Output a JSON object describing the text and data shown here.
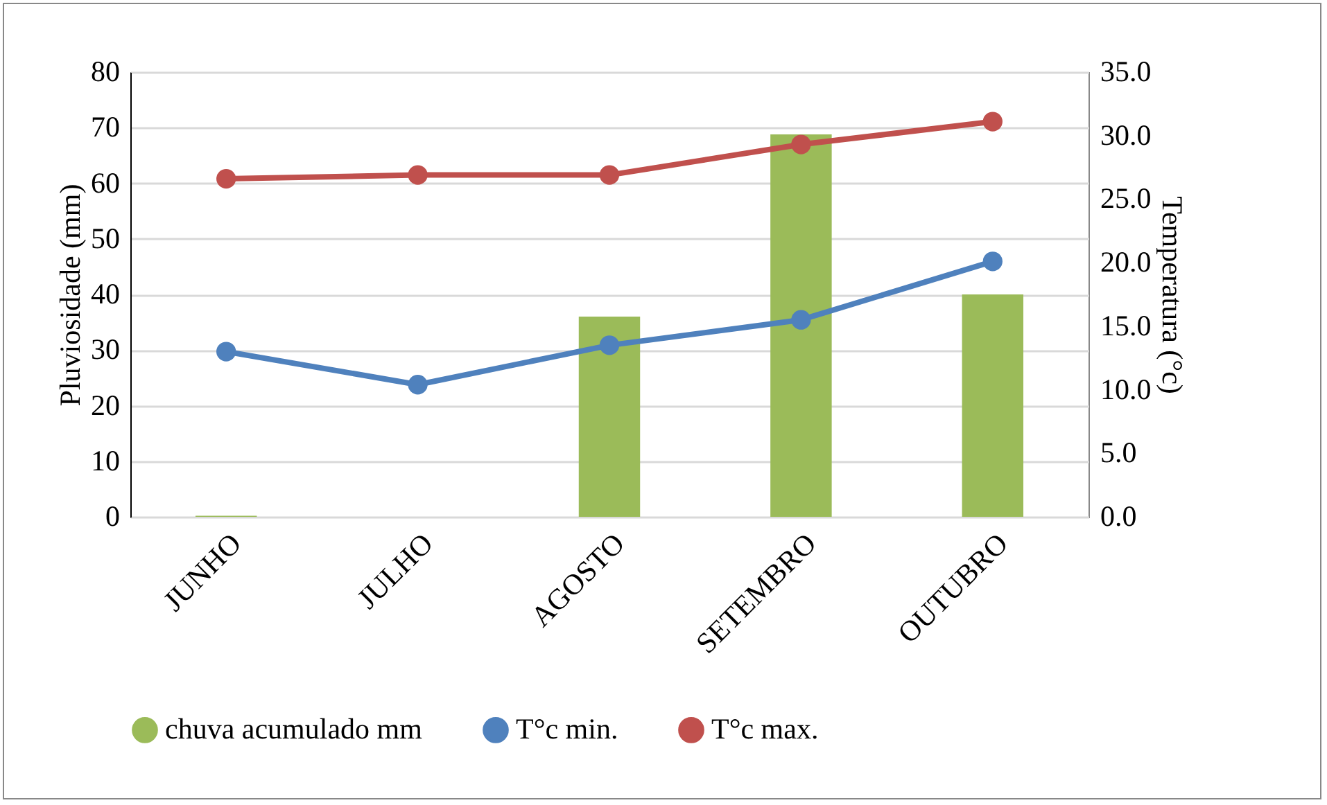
{
  "chart_data": {
    "type": "bar",
    "categories": [
      "JUNHO",
      "JULHO",
      "AGOSTO",
      "SETEMBRO",
      "OUTUBRO"
    ],
    "ylabel": "Pluviosidade (mm)",
    "y2label": "Temperatura (°c)",
    "ylim": [
      0,
      80
    ],
    "yticks": [
      0,
      10,
      20,
      30,
      40,
      50,
      60,
      70,
      80
    ],
    "y2lim": [
      0,
      35
    ],
    "y2ticks": [
      {
        "value": 0,
        "label": "0.0"
      },
      {
        "value": 5,
        "label": "5.0"
      },
      {
        "value": 10,
        "label": "10.0"
      },
      {
        "value": 15,
        "label": "15.0"
      },
      {
        "value": 20,
        "label": "20.0"
      },
      {
        "value": 25,
        "label": "25.0"
      },
      {
        "value": 30,
        "label": "30.0"
      },
      {
        "value": 35,
        "label": "35.0"
      }
    ],
    "grid": "y",
    "legend": "bottom",
    "marker": "circle",
    "series": [
      {
        "name": "chuva acumulado mm",
        "color": "#9bbb59",
        "values": [
          0.2,
          0,
          36,
          68.8,
          40
        ]
      },
      {
        "name": "T°c min.",
        "type": "line",
        "axis": "y2",
        "color": "#4f81bd",
        "values": [
          13.0,
          10.4,
          13.5,
          15.5,
          20.1
        ]
      },
      {
        "name": "T°c max.",
        "type": "line",
        "axis": "y2",
        "color": "#c0504d",
        "values": [
          26.6,
          26.9,
          26.9,
          29.3,
          31.1
        ]
      }
    ]
  }
}
